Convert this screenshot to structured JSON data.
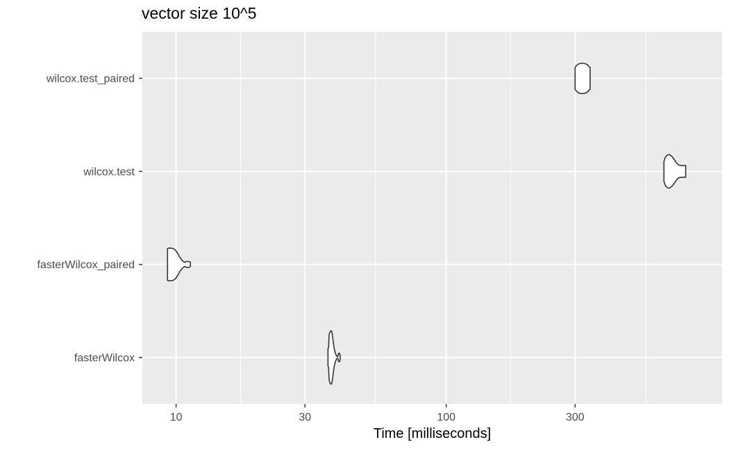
{
  "chart_data": {
    "type": "violin",
    "title": "vector size 10^5",
    "xlabel": "Time [milliseconds]",
    "ylabel": "",
    "x_scale": "log10",
    "xlim": [
      7.5,
      1050
    ],
    "x_ticks": [
      10,
      30,
      100,
      300
    ],
    "x_tick_labels": [
      "10",
      "30",
      "100",
      "300"
    ],
    "x_minor_ticks": [
      17.3,
      54.8,
      173,
      548
    ],
    "grid": true,
    "categories": [
      "faster Wilcox",
      "fasterWilcox_paired",
      "wilcox.test",
      "wilcox.test_paired"
    ],
    "category_labels": [
      "fasterWilcox",
      "fasterWilcox_paired",
      "wilcox.test",
      "wilcox.test_paired"
    ],
    "series": [
      {
        "category": "fasterWilcox",
        "profile": [
          {
            "t": 36.5,
            "w": 0.2
          },
          {
            "t": 36.6,
            "w": 0.22
          },
          {
            "t": 36.7,
            "w": 0.25
          },
          {
            "t": 36.8,
            "w": 0.45
          },
          {
            "t": 36.9,
            "w": 0.55
          },
          {
            "t": 37.1,
            "w": 0.6
          },
          {
            "t": 37.3,
            "w": 0.63
          },
          {
            "t": 37.5,
            "w": 0.64
          },
          {
            "t": 37.7,
            "w": 0.62
          },
          {
            "t": 37.9,
            "w": 0.55
          },
          {
            "t": 38.1,
            "w": 0.42
          },
          {
            "t": 38.4,
            "w": 0.25
          },
          {
            "t": 38.8,
            "w": 0.12
          },
          {
            "t": 39.3,
            "w": 0.03
          },
          {
            "t": 39.7,
            "w": 0.02
          },
          {
            "t": 40.0,
            "w": 0.1
          },
          {
            "t": 40.3,
            "w": 0.1
          },
          {
            "t": 40.5,
            "w": 0.04
          }
        ]
      },
      {
        "category": "fasterWilcox_paired",
        "profile": [
          {
            "t": 9.3,
            "w": 0.38
          },
          {
            "t": 9.4,
            "w": 0.39
          },
          {
            "t": 9.55,
            "w": 0.39
          },
          {
            "t": 9.75,
            "w": 0.38
          },
          {
            "t": 9.95,
            "w": 0.34
          },
          {
            "t": 10.15,
            "w": 0.26
          },
          {
            "t": 10.35,
            "w": 0.16
          },
          {
            "t": 10.55,
            "w": 0.09
          },
          {
            "t": 10.75,
            "w": 0.05
          },
          {
            "t": 10.95,
            "w": 0.07
          },
          {
            "t": 11.15,
            "w": 0.07
          },
          {
            "t": 11.3,
            "w": 0.05
          }
        ]
      },
      {
        "category": "wilcox.test",
        "profile": [
          {
            "t": 640,
            "w": 0.24
          },
          {
            "t": 648,
            "w": 0.34
          },
          {
            "t": 658,
            "w": 0.39
          },
          {
            "t": 670,
            "w": 0.4
          },
          {
            "t": 684,
            "w": 0.36
          },
          {
            "t": 698,
            "w": 0.29
          },
          {
            "t": 712,
            "w": 0.2
          },
          {
            "t": 727,
            "w": 0.15
          },
          {
            "t": 742,
            "w": 0.14
          },
          {
            "t": 758,
            "w": 0.14
          },
          {
            "t": 770,
            "w": 0.14
          }
        ]
      },
      {
        "category": "wilcox.test_paired",
        "profile": [
          {
            "t": 300,
            "w": 0.26
          },
          {
            "t": 304,
            "w": 0.31
          },
          {
            "t": 310,
            "w": 0.35
          },
          {
            "t": 316,
            "w": 0.36
          },
          {
            "t": 322,
            "w": 0.36
          },
          {
            "t": 328,
            "w": 0.35
          },
          {
            "t": 334,
            "w": 0.32
          },
          {
            "t": 338,
            "w": 0.28
          },
          {
            "t": 341,
            "w": 0.26
          }
        ]
      }
    ]
  }
}
